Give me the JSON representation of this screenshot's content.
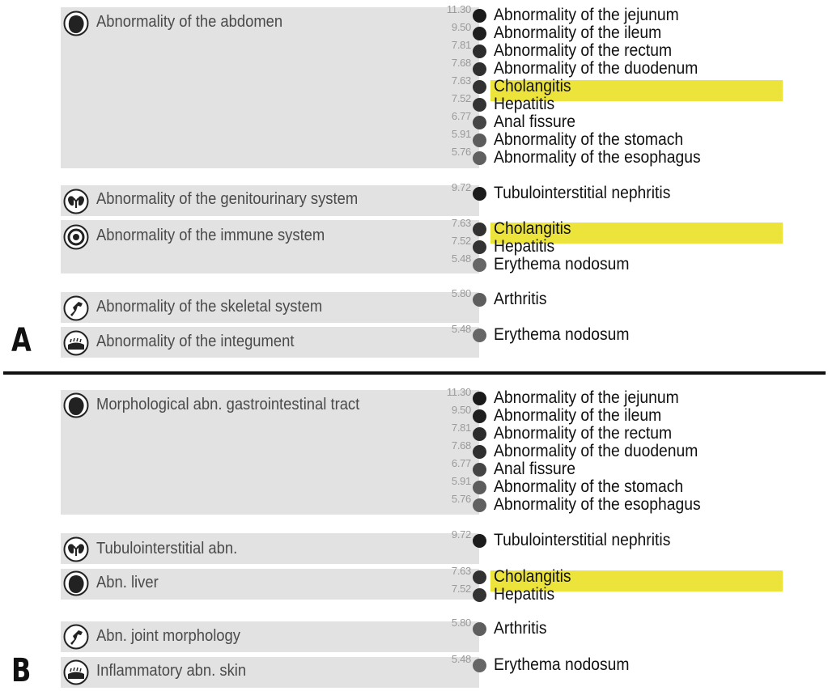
{
  "panels": [
    {
      "letter": "A",
      "groups": [
        {
          "category": "Abnormality of the abdomen",
          "icon": "abdomen-organ-icon",
          "items": [
            {
              "value": "11.30",
              "label": "Abnormality of the jejunum",
              "shade": "#1a1a1a"
            },
            {
              "value": "9.50",
              "label": "Abnormality of the ileum",
              "shade": "#1f1f1f"
            },
            {
              "value": "7.81",
              "label": "Abnormality of the rectum",
              "shade": "#2c2c2c"
            },
            {
              "value": "7.68",
              "label": "Abnormality of the duodenum",
              "shade": "#2f2f2f"
            },
            {
              "value": "7.63",
              "label": "Cholangitis",
              "shade": "#313131",
              "highlight": true
            },
            {
              "value": "7.52",
              "label": "Hepatitis",
              "shade": "#333333"
            },
            {
              "value": "6.77",
              "label": "Anal fissure",
              "shade": "#454545"
            },
            {
              "value": "5.91",
              "label": "Abnormality of the stomach",
              "shade": "#5c5c5c"
            },
            {
              "value": "5.76",
              "label": "Abnormality of the esophagus",
              "shade": "#606060"
            }
          ]
        },
        {
          "category": "Abnormality of the genitourinary system",
          "icon": "genitourinary-icon",
          "items": [
            {
              "value": "9.72",
              "label": "Tubulointerstitial nephritis",
              "shade": "#1c1c1c"
            }
          ]
        },
        {
          "category": "Abnormality of the immune system",
          "icon": "immune-system-icon",
          "items": [
            {
              "value": "7.63",
              "label": "Cholangitis",
              "shade": "#313131",
              "highlight": true
            },
            {
              "value": "7.52",
              "label": "Hepatitis",
              "shade": "#333333"
            },
            {
              "value": "5.48",
              "label": "Erythema nodosum",
              "shade": "#666666"
            }
          ]
        },
        {
          "category": "Abnormality of the skeletal system",
          "icon": "skeletal-joint-icon",
          "items": [
            {
              "value": "5.80",
              "label": "Arthritis",
              "shade": "#5e5e5e"
            }
          ]
        },
        {
          "category": "Abnormality of the integument",
          "icon": "skin-icon",
          "items": [
            {
              "value": "5.48",
              "label": "Erythema nodosum",
              "shade": "#666666"
            }
          ]
        }
      ]
    },
    {
      "letter": "B",
      "groups": [
        {
          "category": "Morphological abn. gastrointestinal tract",
          "icon": "gastrointestinal-organ-icon",
          "items": [
            {
              "value": "11.30",
              "label": "Abnormality of the jejunum",
              "shade": "#1a1a1a"
            },
            {
              "value": "9.50",
              "label": "Abnormality of the ileum",
              "shade": "#1f1f1f"
            },
            {
              "value": "7.81",
              "label": "Abnormality of the rectum",
              "shade": "#2c2c2c"
            },
            {
              "value": "7.68",
              "label": "Abnormality of the duodenum",
              "shade": "#2f2f2f"
            },
            {
              "value": "6.77",
              "label": "Anal fissure",
              "shade": "#454545"
            },
            {
              "value": "5.91",
              "label": "Abnormality of the stomach",
              "shade": "#5c5c5c"
            },
            {
              "value": "5.76",
              "label": "Abnormality of the esophagus",
              "shade": "#606060"
            }
          ]
        },
        {
          "category": "Tubulointerstitial abn.",
          "icon": "genitourinary-icon",
          "items": [
            {
              "value": "9.72",
              "label": "Tubulointerstitial nephritis",
              "shade": "#1c1c1c"
            }
          ]
        },
        {
          "category": "Abn. liver",
          "icon": "liver-organ-icon",
          "items": [
            {
              "value": "7.63",
              "label": "Cholangitis",
              "shade": "#313131",
              "highlight": true
            },
            {
              "value": "7.52",
              "label": "Hepatitis",
              "shade": "#333333"
            }
          ]
        },
        {
          "category": "Abn. joint morphology",
          "icon": "skeletal-joint-icon",
          "items": [
            {
              "value": "5.80",
              "label": "Arthritis",
              "shade": "#5e5e5e"
            }
          ]
        },
        {
          "category": "Inflammatory abn. skin",
          "icon": "skin-icon",
          "items": [
            {
              "value": "5.48",
              "label": "Erythema nodosum",
              "shade": "#666666"
            }
          ]
        }
      ]
    }
  ]
}
